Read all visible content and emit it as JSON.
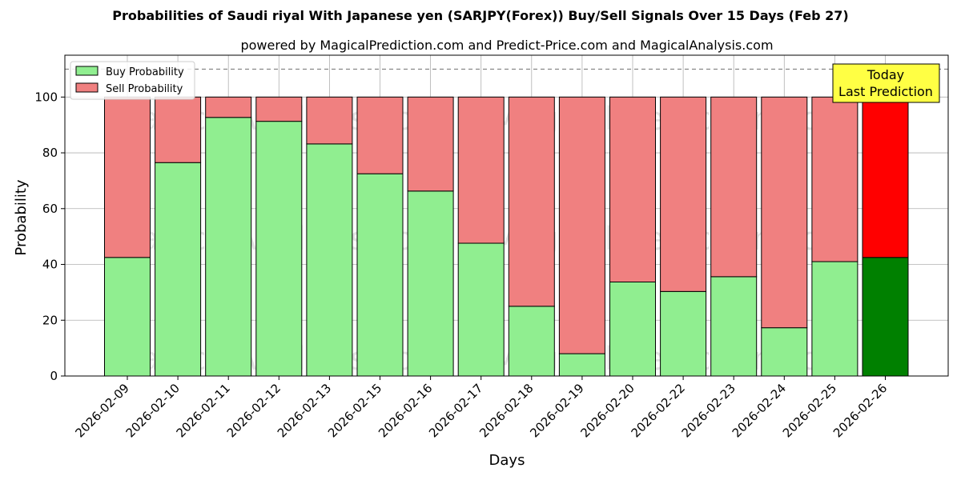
{
  "chart_data": {
    "type": "bar",
    "stacked": true,
    "title": "Probabilities of Saudi riyal With Japanese yen (SARJPY(Forex)) Buy/Sell Signals Over 15 Days (Feb 27)",
    "subtitle": "powered by MagicalPrediction.com and Predict-Price.com and MagicalAnalysis.com",
    "xlabel": "Days",
    "ylabel": "Probability",
    "ylim": [
      0,
      115
    ],
    "yticks": [
      0,
      20,
      40,
      60,
      80,
      100
    ],
    "reference_line": 110,
    "grid": true,
    "legend_position": "top-left",
    "categories": [
      "2026-02-09",
      "2026-02-10",
      "2026-02-11",
      "2026-02-12",
      "2026-02-13",
      "2026-02-15",
      "2026-02-16",
      "2026-02-17",
      "2026-02-18",
      "2026-02-19",
      "2026-02-20",
      "2026-02-22",
      "2026-02-23",
      "2026-02-24",
      "2026-02-25",
      "2026-02-26"
    ],
    "series": [
      {
        "name": "Buy Probability",
        "color": "#90ee90",
        "highlight_color": "#008000",
        "values": [
          42.5,
          76.5,
          92.7,
          91.3,
          83.2,
          72.5,
          66.3,
          47.6,
          25.0,
          8.0,
          33.7,
          30.3,
          35.6,
          17.3,
          41.0,
          42.5
        ]
      },
      {
        "name": "Sell Probability",
        "color": "#f08080",
        "highlight_color": "#ff0000",
        "values": [
          57.5,
          23.5,
          7.3,
          8.7,
          16.8,
          27.5,
          33.7,
          52.4,
          75.0,
          92.0,
          66.3,
          69.7,
          64.4,
          82.7,
          59.0,
          57.5
        ]
      }
    ],
    "highlight_index": 15,
    "annotation": {
      "lines": [
        "Today",
        "Last Prediction"
      ],
      "background": "#ffff44"
    },
    "watermarks": [
      "MagicalAnalysis.com",
      "MagicalPrediction.com"
    ]
  }
}
